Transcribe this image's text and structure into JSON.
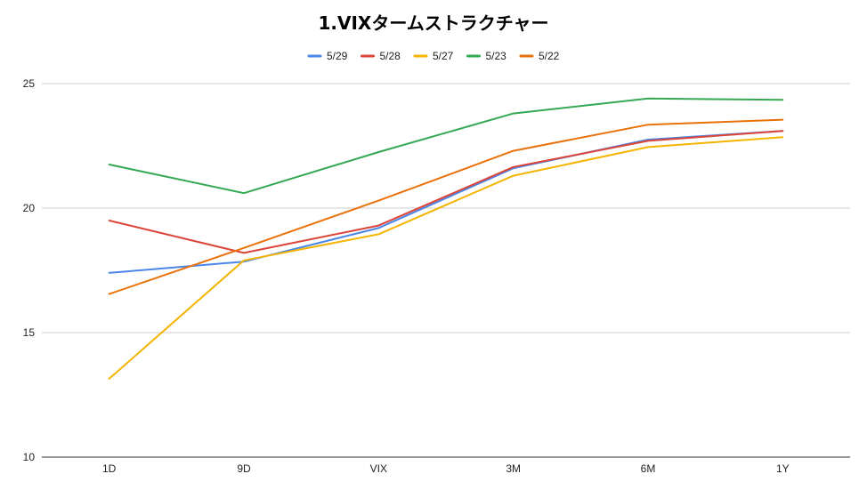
{
  "chart_data": {
    "type": "line",
    "title": "1.VIXタームストラクチャー",
    "categories": [
      "1D",
      "9D",
      "VIX",
      "3M",
      "6M",
      "1Y"
    ],
    "y_ticks": [
      "10",
      "15",
      "20",
      "25"
    ],
    "ylim": [
      10,
      25
    ],
    "grid": true,
    "legend_position": "top",
    "series": [
      {
        "name": "5/29",
        "color": "#4a86e8",
        "values": [
          17.4,
          17.85,
          19.2,
          21.6,
          22.75,
          23.1
        ]
      },
      {
        "name": "5/28",
        "color": "#db4437",
        "values": [
          19.5,
          18.2,
          19.3,
          21.65,
          22.7,
          23.1
        ]
      },
      {
        "name": "5/27",
        "color": "#f4b400",
        "values": [
          13.15,
          17.9,
          18.95,
          21.3,
          22.45,
          22.85
        ]
      },
      {
        "name": "5/23",
        "color": "#34a853",
        "values": [
          21.75,
          20.6,
          22.25,
          23.8,
          24.4,
          24.35
        ]
      },
      {
        "name": "5/22",
        "color": "#e8710a",
        "values": [
          16.55,
          18.4,
          20.3,
          22.3,
          23.35,
          23.55
        ]
      }
    ]
  }
}
